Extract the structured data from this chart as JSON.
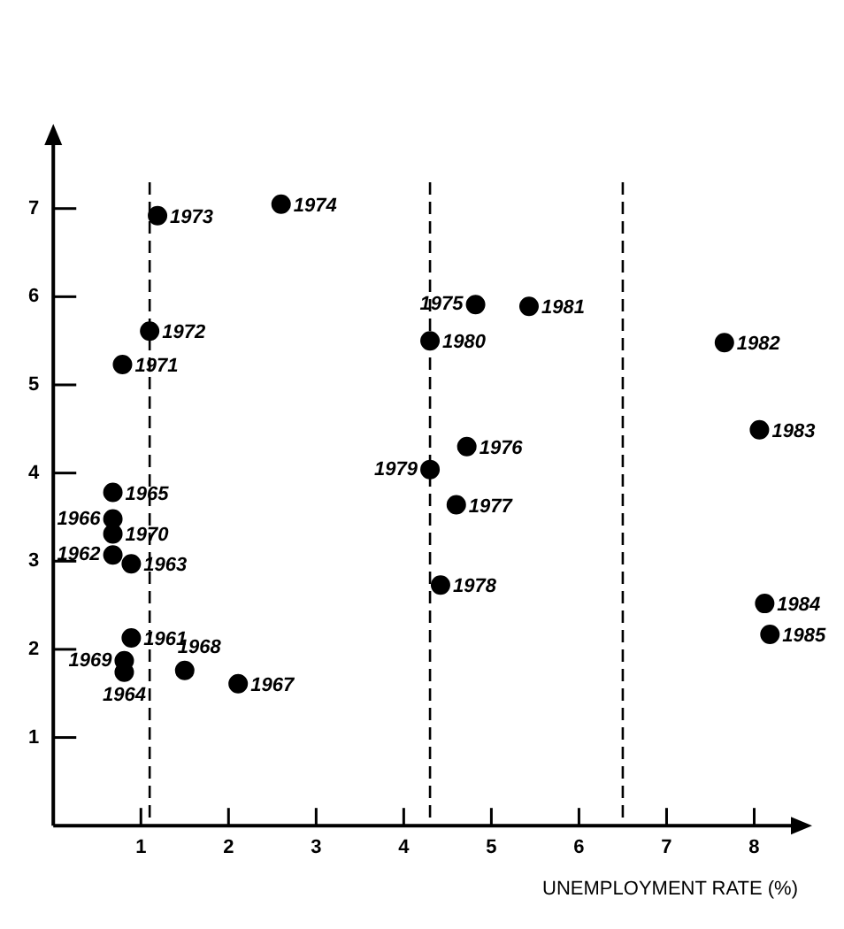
{
  "chart_data": {
    "type": "scatter",
    "xlabel": "UNEMPLOYMENT RATE (%)",
    "x": [
      0.89,
      0.68,
      0.89,
      0.81,
      0.68,
      0.68,
      2.11,
      1.5,
      0.81,
      0.68,
      0.79,
      1.1,
      1.19,
      2.6,
      4.82,
      4.72,
      4.6,
      4.42,
      4.3,
      4.3,
      5.43,
      7.66,
      8.06,
      8.12,
      8.18
    ],
    "values": [
      2.13,
      3.07,
      2.97,
      1.74,
      3.78,
      3.48,
      1.61,
      1.76,
      1.87,
      3.31,
      5.23,
      5.61,
      6.92,
      7.05,
      5.91,
      4.3,
      3.64,
      2.73,
      4.04,
      5.5,
      5.89,
      5.48,
      4.49,
      2.52,
      2.17
    ],
    "color": "#000000",
    "marker": "circle",
    "grid": false,
    "legend": false,
    "xlim": [
      0,
      8.5
    ],
    "ylim": [
      0,
      7.8
    ],
    "xticks": [
      1,
      2,
      3,
      4,
      5,
      6,
      7,
      8
    ],
    "yticks": [
      1,
      2,
      3,
      4,
      5,
      6,
      7
    ],
    "ref_lines": [
      {
        "axis": "x",
        "value": 1.1,
        "color": "#000000",
        "line_style": "dashed"
      },
      {
        "axis": "x",
        "value": 4.3,
        "color": "#000000",
        "line_style": "dashed"
      },
      {
        "axis": "x",
        "value": 6.5,
        "color": "#000000",
        "line_style": "dashed"
      }
    ],
    "annotations": [
      {
        "text": "1961",
        "x": 0.89,
        "y": 2.13
      },
      {
        "text": "1962",
        "x": 0.68,
        "y": 3.07
      },
      {
        "text": "1963",
        "x": 0.89,
        "y": 2.97
      },
      {
        "text": "1964",
        "x": 0.81,
        "y": 1.74
      },
      {
        "text": "1965",
        "x": 0.68,
        "y": 3.78
      },
      {
        "text": "1966",
        "x": 0.68,
        "y": 3.48
      },
      {
        "text": "1967",
        "x": 2.11,
        "y": 1.61
      },
      {
        "text": "1968",
        "x": 1.5,
        "y": 1.76
      },
      {
        "text": "1969",
        "x": 0.81,
        "y": 1.87
      },
      {
        "text": "1970",
        "x": 0.68,
        "y": 3.31
      },
      {
        "text": "1971",
        "x": 0.79,
        "y": 5.23
      },
      {
        "text": "1972",
        "x": 1.1,
        "y": 5.61
      },
      {
        "text": "1973",
        "x": 1.19,
        "y": 6.92
      },
      {
        "text": "1974",
        "x": 2.6,
        "y": 7.05
      },
      {
        "text": "1975",
        "x": 4.82,
        "y": 5.91
      },
      {
        "text": "1976",
        "x": 4.72,
        "y": 4.3
      },
      {
        "text": "1977",
        "x": 4.6,
        "y": 3.64
      },
      {
        "text": "1978",
        "x": 4.42,
        "y": 2.73
      },
      {
        "text": "1979",
        "x": 4.3,
        "y": 4.04
      },
      {
        "text": "1980",
        "x": 4.3,
        "y": 5.5
      },
      {
        "text": "1981",
        "x": 5.43,
        "y": 5.89
      },
      {
        "text": "1982",
        "x": 7.66,
        "y": 5.48
      },
      {
        "text": "1983",
        "x": 8.06,
        "y": 4.49
      },
      {
        "text": "1984",
        "x": 8.12,
        "y": 2.52
      },
      {
        "text": "1985",
        "x": 8.18,
        "y": 2.17
      }
    ]
  }
}
